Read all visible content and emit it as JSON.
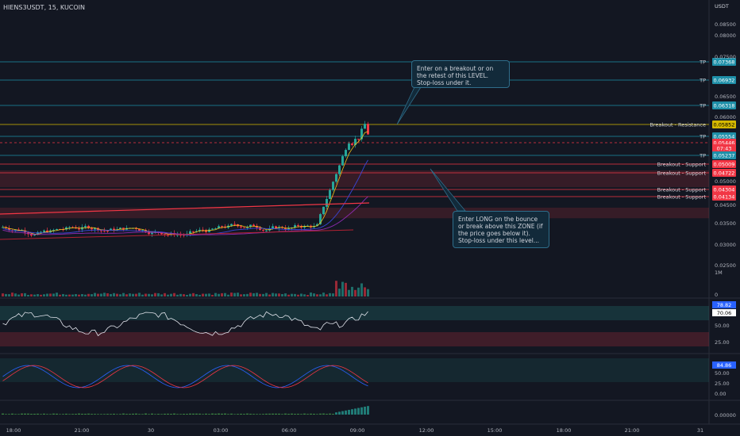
{
  "header": {
    "title": "HIENS3USDT, 15, KUCOIN",
    "currency": "USDT"
  },
  "callouts": {
    "top": "Enter on a breakout or on the retest of this LEVEL. Stop-loss under it.",
    "bottom": "Enter LONG on the bounce or break above this ZONE (if the price goes below it). Stop-loss under this level..."
  },
  "chart_data": {
    "type": "candlestick",
    "yaxis_ticks": [
      "0.08500",
      "0.08000",
      "0.07500",
      "0.06500",
      "0.06000",
      "0.05000",
      "0.04500",
      "0.03500",
      "0.03000",
      "0.02500"
    ],
    "xaxis_ticks": [
      "18:00",
      "21:00",
      "30",
      "03:00",
      "06:00",
      "09:00",
      "12:00",
      "15:00",
      "18:00",
      "21:00",
      "31"
    ],
    "levels": [
      {
        "label": "TP",
        "price": "0.07368",
        "color": "#1e8fa8"
      },
      {
        "label": "TP",
        "price": "0.06932",
        "color": "#1e8fa8"
      },
      {
        "label": "TP",
        "price": "0.06318",
        "color": "#1e8fa8"
      },
      {
        "label": "Breakout - Resistance",
        "price": "0.05852",
        "color": "#d4b800"
      },
      {
        "label": "TP",
        "price": "0.05554",
        "color": "#1e8fa8"
      },
      {
        "label": "",
        "price": "0.05446",
        "color": "#f23645"
      },
      {
        "label": "",
        "price": "07:43",
        "color": "#f23645"
      },
      {
        "label": "TP",
        "price": "0.05237",
        "color": "#1e8fa8"
      },
      {
        "label": "Breakout - Support",
        "price": "0.05009",
        "color": "#f23645"
      },
      {
        "label": "Breakout - Support",
        "price": "0.04722",
        "color": "#f23645"
      },
      {
        "label": "Breakout - Support",
        "price": "0.04304",
        "color": "#f23645"
      },
      {
        "label": "Breakout - Support",
        "price": "0.04134",
        "color": "#f23645"
      }
    ],
    "volume": {
      "axis_labels": [
        "1M",
        "0"
      ]
    },
    "rsi": {
      "values": [
        "78.82",
        "70.06"
      ],
      "axis_labels": [
        "50.00",
        "25.00"
      ]
    },
    "stoch": {
      "values": [
        "84.86"
      ],
      "axis_labels": [
        "50.00",
        "25.00",
        "0.00"
      ]
    },
    "macd": {
      "axis_labels": [
        "0.00000"
      ]
    },
    "colors": {
      "up": "#26a69a",
      "down": "#f23645",
      "bg": "#131722",
      "teal": "#1e8fa8",
      "yellow": "#d4b800"
    }
  }
}
